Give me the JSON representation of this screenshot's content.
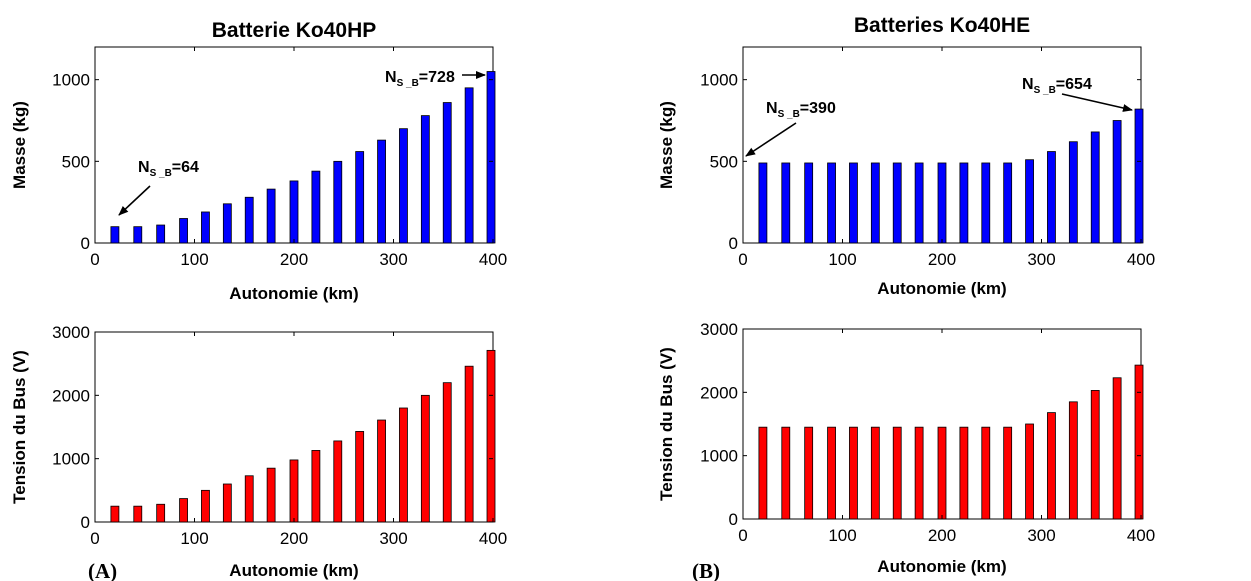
{
  "figure_labels": {
    "left": "(A)",
    "right": "(B)"
  },
  "chart_data": [
    {
      "type": "bar",
      "title": "Batterie Ko40HP",
      "xlabel": "Autonomie (km)",
      "ylabel": "Masse (kg)",
      "xlim": [
        0,
        400
      ],
      "ylim": [
        0,
        1200
      ],
      "xticks": [
        0,
        100,
        200,
        300,
        400
      ],
      "yticks": [
        0,
        500,
        1000
      ],
      "color": "#0000ff",
      "x": [
        20,
        43,
        66,
        89,
        111,
        133,
        155,
        177,
        200,
        222,
        244,
        266,
        288,
        310,
        332,
        354,
        376,
        398
      ],
      "values": [
        100,
        100,
        110,
        150,
        190,
        240,
        280,
        330,
        380,
        440,
        500,
        560,
        630,
        700,
        780,
        860,
        950,
        1050
      ],
      "annotations": [
        {
          "label": "N",
          "sub": "S_B",
          "value": "=64"
        },
        {
          "label": "N",
          "sub": "S_B",
          "value": "=728"
        }
      ]
    },
    {
      "type": "bar",
      "title": "",
      "xlabel": "Autonomie (km)",
      "ylabel": "Tension du Bus (V)",
      "xlim": [
        0,
        400
      ],
      "ylim": [
        0,
        3000
      ],
      "xticks": [
        0,
        100,
        200,
        300,
        400
      ],
      "yticks": [
        0,
        1000,
        2000,
        3000
      ],
      "color": "#ff0000",
      "x": [
        20,
        43,
        66,
        89,
        111,
        133,
        155,
        177,
        200,
        222,
        244,
        266,
        288,
        310,
        332,
        354,
        376,
        398
      ],
      "values": [
        250,
        250,
        280,
        370,
        500,
        600,
        730,
        850,
        980,
        1130,
        1280,
        1430,
        1610,
        1800,
        2000,
        2200,
        2460,
        2710
      ]
    },
    {
      "type": "bar",
      "title": "Batteries Ko40HE",
      "xlabel": "Autonomie (km)",
      "ylabel": "Masse (kg)",
      "xlim": [
        0,
        400
      ],
      "ylim": [
        0,
        1200
      ],
      "xticks": [
        0,
        100,
        200,
        300,
        400
      ],
      "yticks": [
        0,
        500,
        1000
      ],
      "color": "#0000ff",
      "x": [
        20,
        43,
        66,
        89,
        111,
        133,
        155,
        177,
        200,
        222,
        244,
        266,
        288,
        310,
        332,
        354,
        376,
        398
      ],
      "values": [
        490,
        490,
        490,
        490,
        490,
        490,
        490,
        490,
        490,
        490,
        490,
        490,
        510,
        560,
        620,
        680,
        750,
        820
      ],
      "annotations": [
        {
          "label": "N",
          "sub": "S_B",
          "value": "=390"
        },
        {
          "label": "N",
          "sub": "S_B",
          "value": "=654"
        }
      ]
    },
    {
      "type": "bar",
      "title": "",
      "xlabel": "Autonomie (km)",
      "ylabel": "Tension du Bus (V)",
      "xlim": [
        0,
        400
      ],
      "ylim": [
        0,
        3000
      ],
      "xticks": [
        0,
        100,
        200,
        300,
        400
      ],
      "yticks": [
        0,
        1000,
        2000,
        3000
      ],
      "color": "#ff0000",
      "x": [
        20,
        43,
        66,
        89,
        111,
        133,
        155,
        177,
        200,
        222,
        244,
        266,
        288,
        310,
        332,
        354,
        376,
        398
      ],
      "values": [
        1450,
        1450,
        1450,
        1450,
        1450,
        1450,
        1450,
        1450,
        1450,
        1450,
        1450,
        1450,
        1500,
        1680,
        1850,
        2030,
        2230,
        2430
      ]
    }
  ]
}
